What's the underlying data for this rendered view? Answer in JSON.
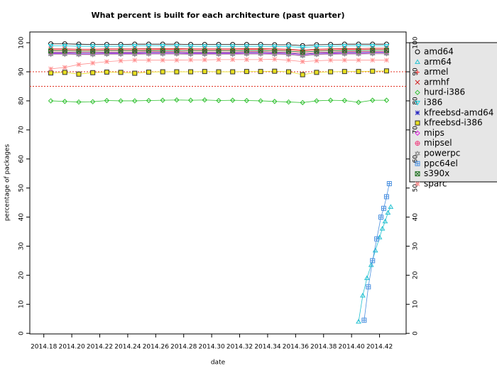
{
  "chart_data": {
    "type": "line",
    "title": "What percent is built for each architecture (past quarter)",
    "x_label": "date",
    "y_label": "percentage of packages",
    "xlim": [
      2014.17,
      2014.439
    ],
    "ylim": [
      -0.2,
      103.7
    ],
    "xticks": [
      2014.18,
      {
        "value": 2014.2,
        "label": "2014.20"
      },
      2014.22,
      2014.24,
      2014.26,
      2014.28,
      {
        "value": 2014.3,
        "label": "2014.30"
      },
      2014.32,
      2014.34,
      2014.36,
      2014.38,
      {
        "value": 2014.4,
        "label": "2014.40"
      },
      2014.42
    ],
    "yticks": [
      0,
      10,
      20,
      30,
      40,
      50,
      60,
      70,
      80,
      90,
      100
    ],
    "reference_lines": [
      90,
      85
    ],
    "reference_color": "#e03020",
    "legend": "right",
    "x": [
      2014.185,
      2014.195,
      2014.205,
      2014.215,
      2014.225,
      2014.235,
      2014.245,
      2014.255,
      2014.265,
      2014.275,
      2014.285,
      2014.295,
      2014.305,
      2014.315,
      2014.325,
      2014.335,
      2014.345,
      2014.355,
      2014.365,
      2014.375,
      2014.385,
      2014.395,
      2014.405,
      2014.415,
      2014.425
    ],
    "series": [
      {
        "name": "amd64",
        "color": "#000000",
        "marker": "circle",
        "values": [
          99.6,
          99.6,
          99.5,
          99.4,
          99.4,
          99.4,
          99.5,
          99.5,
          99.5,
          99.5,
          99.4,
          99.4,
          99.4,
          99.4,
          99.4,
          99.4,
          99.3,
          99.3,
          99.0,
          99.3,
          99.4,
          99.5,
          99.5,
          99.5,
          99.5
        ]
      },
      {
        "name": "arm64",
        "color": "#20c0d0",
        "marker": "triangle",
        "x": [
          2014.405,
          2014.408,
          2014.411,
          2014.414,
          2014.417,
          2014.42,
          2014.422,
          2014.424,
          2014.426,
          2014.428
        ],
        "values": [
          4,
          13,
          19,
          23.5,
          28.5,
          33,
          36,
          38.5,
          41.5,
          43.5
        ]
      },
      {
        "name": "armel",
        "color": "#ff3030",
        "marker": "plus",
        "values": [
          97.6,
          97.6,
          97.5,
          97.5,
          97.6,
          97.6,
          97.6,
          97.6,
          97.7,
          97.7,
          97.6,
          97.6,
          97.6,
          97.6,
          97.7,
          97.7,
          97.6,
          97.5,
          97.2,
          97.5,
          97.6,
          97.7,
          97.7,
          97.8,
          97.8
        ]
      },
      {
        "name": "armhf",
        "color": "#d02020",
        "marker": "cross",
        "values": [
          97.9,
          97.9,
          97.8,
          97.8,
          97.9,
          97.9,
          97.9,
          98.0,
          98.0,
          98.0,
          97.9,
          97.9,
          97.9,
          97.9,
          98.0,
          98.0,
          97.9,
          97.8,
          97.5,
          97.8,
          97.9,
          98.0,
          98.0,
          98.1,
          98.1
        ]
      },
      {
        "name": "hurd-i386",
        "color": "#30c030",
        "marker": "diamond",
        "values": [
          80,
          79.8,
          79.6,
          79.7,
          80.1,
          80,
          80,
          80.1,
          80.2,
          80.3,
          80.2,
          80.3,
          80.1,
          80.2,
          80.1,
          80,
          79.8,
          79.6,
          79.4,
          80,
          80.2,
          80.1,
          79.5,
          80.2,
          80.2
        ]
      },
      {
        "name": "i386",
        "color": "#10d0e0",
        "marker": "invtriangle",
        "values": [
          98.9,
          98.9,
          98.8,
          98.8,
          98.8,
          98.8,
          98.9,
          98.9,
          98.9,
          98.9,
          98.8,
          98.8,
          98.8,
          98.8,
          98.8,
          98.8,
          98.7,
          98.7,
          98.4,
          98.7,
          98.8,
          98.9,
          98.9,
          98.9,
          98.9
        ]
      },
      {
        "name": "kfreebsd-amd64",
        "color": "#2020c0",
        "marker": "asterisk",
        "values": [
          96.5,
          96.5,
          96.4,
          96.4,
          96.5,
          96.5,
          96.5,
          96.6,
          96.6,
          96.6,
          96.5,
          96.5,
          96.5,
          96.5,
          96.6,
          96.6,
          96.5,
          96.4,
          96.0,
          96.4,
          96.5,
          96.6,
          96.6,
          96.7,
          96.7
        ]
      },
      {
        "name": "kfreebsd-i386",
        "color": "#e8e020",
        "marker": "square",
        "values": [
          89.6,
          89.8,
          89.2,
          89.7,
          89.9,
          89.8,
          89.5,
          89.9,
          90.0,
          90.0,
          90.0,
          90.1,
          90.0,
          90.0,
          90.1,
          90.1,
          90.2,
          90.0,
          89.0,
          89.8,
          90.0,
          90.1,
          90.1,
          90.2,
          90.3
        ]
      },
      {
        "name": "mips",
        "color": "#e020e0",
        "marker": "diamond",
        "values": [
          96.2,
          96.2,
          96.1,
          96.1,
          96.2,
          96.2,
          96.2,
          96.3,
          96.3,
          96.3,
          96.2,
          96.2,
          96.2,
          96.2,
          96.3,
          96.3,
          96.2,
          96.1,
          95.7,
          96.1,
          96.2,
          96.3,
          96.3,
          96.4,
          96.4
        ]
      },
      {
        "name": "mipsel",
        "color": "#f04080",
        "marker": "circleplus",
        "values": [
          96.8,
          96.8,
          96.7,
          96.7,
          96.8,
          96.8,
          96.8,
          96.9,
          96.9,
          96.9,
          96.8,
          96.8,
          96.8,
          96.8,
          96.9,
          96.9,
          96.8,
          96.7,
          96.3,
          96.7,
          96.8,
          96.9,
          96.9,
          97.0,
          97.0
        ]
      },
      {
        "name": "powerpc",
        "color": "#909090",
        "marker": "star",
        "values": [
          96.0,
          96.0,
          95.9,
          95.9,
          96.0,
          96.0,
          96.0,
          96.1,
          96.1,
          96.1,
          96.0,
          96.0,
          96.0,
          96.0,
          96.1,
          96.1,
          96.0,
          95.9,
          95.5,
          95.9,
          96.0,
          96.1,
          96.1,
          96.2,
          96.2
        ]
      },
      {
        "name": "ppc64el",
        "color": "#4a90e0",
        "marker": "squareplus",
        "x": [
          2014.409,
          2014.412,
          2014.415,
          2014.418,
          2014.421,
          2014.423,
          2014.425,
          2014.427
        ],
        "values": [
          4.5,
          16,
          25,
          32.5,
          40,
          43,
          47,
          51.5
        ]
      },
      {
        "name": "s390x",
        "color": "#207020",
        "marker": "squarecross",
        "values": [
          97.2,
          97.2,
          97.1,
          97.1,
          97.2,
          97.2,
          97.2,
          97.3,
          97.3,
          97.3,
          97.2,
          97.2,
          97.2,
          97.2,
          97.3,
          97.3,
          97.2,
          97.1,
          96.8,
          97.1,
          97.2,
          97.3,
          97.3,
          97.4,
          97.4
        ]
      },
      {
        "name": "sparc",
        "color": "#ff9090",
        "marker": "asterisk",
        "values": [
          91,
          91.5,
          92.5,
          93,
          93.5,
          93.8,
          94,
          94,
          94,
          94,
          94.1,
          94.1,
          94.2,
          94.2,
          94.2,
          94.2,
          94.3,
          94,
          93.5,
          93.8,
          94,
          94,
          94,
          94,
          94
        ]
      }
    ]
  }
}
